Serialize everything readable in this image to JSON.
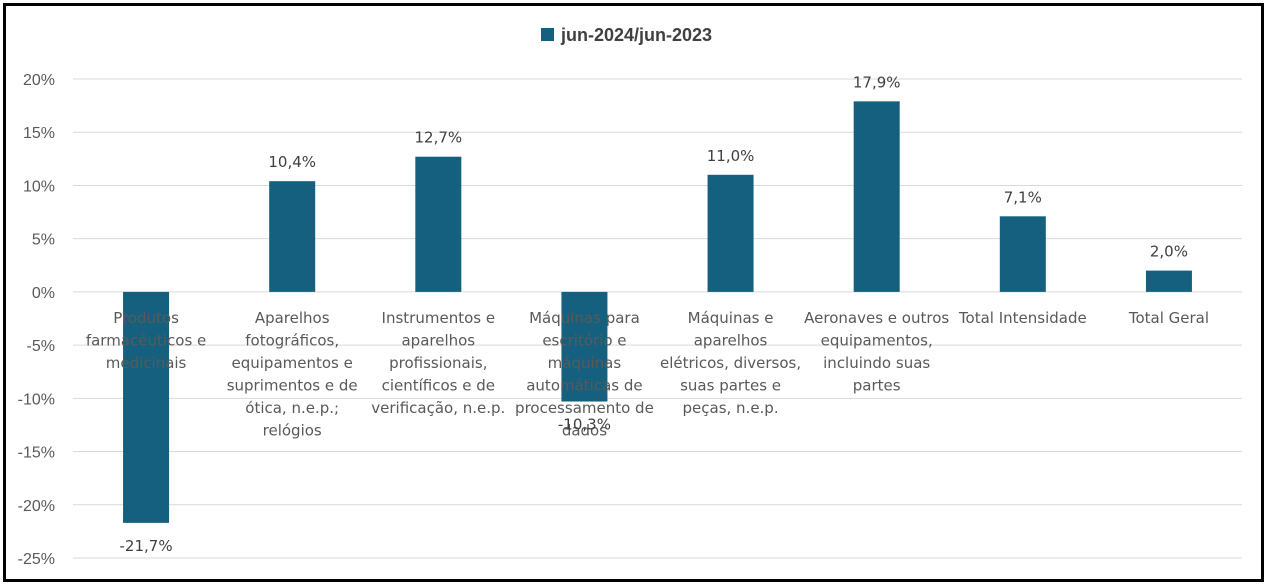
{
  "chart_data": {
    "type": "bar",
    "categories": [
      "Produtos farmacêuticos e medicinais",
      "Aparelhos fotográficos, equipamentos e suprimentos e de ótica, n.e.p.; relógios",
      "Instrumentos e aparelhos profissionais, científicos e de verificação, n.e.p.",
      "Máquinas para escritório e máquinas automáticas de processamento de dados",
      "Máquinas e aparelhos elétricos, diversos, suas partes e peças, n.e.p.",
      "Aeronaves e outros equipamentos, incluindo suas partes",
      "Total Intensidade",
      "Total Geral"
    ],
    "category_lines": [
      [
        "Produtos",
        "farmacêuticos e",
        "medicinais"
      ],
      [
        "Aparelhos",
        "fotográficos,",
        "equipamentos e",
        "suprimentos e de",
        "ótica, n.e.p.;",
        "relógios"
      ],
      [
        "Instrumentos e",
        "aparelhos",
        "profissionais,",
        "científicos e de",
        "verificação, n.e.p."
      ],
      [
        "Máquinas para",
        "escritório e",
        "máquinas",
        "automáticas de",
        "processamento de",
        "dados"
      ],
      [
        "Máquinas e",
        "aparelhos",
        "elétricos, diversos,",
        "suas partes e",
        "peças, n.e.p."
      ],
      [
        "Aeronaves e outros",
        "equipamentos,",
        "incluindo suas",
        "partes"
      ],
      [
        "Total Intensidade"
      ],
      [
        "Total Geral"
      ]
    ],
    "series": [
      {
        "name": "jun-2024/jun-2023",
        "values": [
          -21.7,
          10.4,
          12.7,
          -10.3,
          11.0,
          17.9,
          7.1,
          2.0
        ],
        "color": "#15607F"
      }
    ],
    "data_labels": [
      "-21,7%",
      "10,4%",
      "12,7%",
      "-10,3%",
      "11,0%",
      "17,9%",
      "7,1%",
      "2,0%"
    ],
    "yticks": [
      20,
      15,
      10,
      5,
      0,
      -5,
      -10,
      -15,
      -20,
      -25
    ],
    "ytick_labels": [
      "20%",
      "15%",
      "10%",
      "5%",
      "0%",
      "-5%",
      "-10%",
      "-15%",
      "-20%",
      "-25%"
    ],
    "ylim": [
      -25,
      20
    ],
    "grid": true,
    "legend_position": "top-center",
    "title": "",
    "xlabel": "",
    "ylabel": ""
  }
}
